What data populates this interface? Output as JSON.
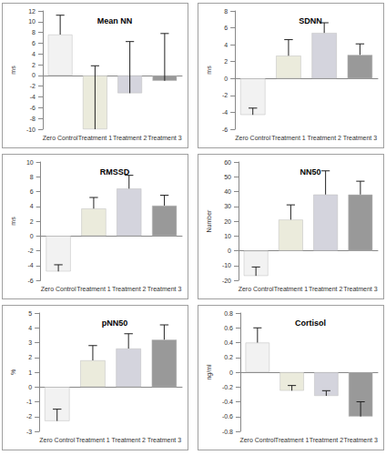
{
  "chart_data": [
    {
      "type": "bar",
      "title": "Mean NN",
      "y_label": "ms",
      "categories": [
        "Zero Control",
        "Treatment 1",
        "Treatment 2",
        "Treatment 3"
      ],
      "values": [
        7.6,
        -10,
        -3.3,
        -1
      ],
      "error": [
        3.6,
        11.8,
        9.6,
        8.8
      ],
      "colors": [
        "#f2f2f2",
        "#ebebdc",
        "#d4d4dd",
        "#999999"
      ],
      "ylim": [
        -10,
        12
      ],
      "yticks": [
        -10,
        -8,
        -6,
        -4,
        -2,
        0,
        2,
        4,
        6,
        8,
        10,
        12
      ],
      "grid": false
    },
    {
      "type": "bar",
      "title": "SDNN",
      "y_label": "ms",
      "categories": [
        "Zero Control",
        "Treatment 1",
        "Treatment 2",
        "Treatment 3"
      ],
      "values": [
        -4.3,
        2.7,
        5.4,
        2.8
      ],
      "error": [
        0.8,
        1.9,
        1.2,
        1.3
      ],
      "colors": [
        "#f2f2f2",
        "#ebebdc",
        "#d4d4dd",
        "#999999"
      ],
      "ylim": [
        -6,
        8
      ],
      "yticks": [
        -6,
        -4,
        -2,
        0,
        2,
        4,
        6,
        8
      ],
      "grid": false
    },
    {
      "type": "bar",
      "title": "RMSSD",
      "y_label": "ms",
      "categories": [
        "Zero Control",
        "Treatment 1",
        "Treatment 2",
        "Treatment 3"
      ],
      "values": [
        -4.8,
        3.7,
        6.4,
        4.1
      ],
      "error": [
        0.9,
        1.5,
        1.8,
        1.4
      ],
      "colors": [
        "#f2f2f2",
        "#ebebdc",
        "#d4d4dd",
        "#999999"
      ],
      "ylim": [
        -6,
        10
      ],
      "yticks": [
        -6,
        -4,
        -2,
        0,
        2,
        4,
        6,
        8,
        10
      ],
      "grid": false
    },
    {
      "type": "bar",
      "title": "NN50",
      "y_label": "Number",
      "categories": [
        "Zero Control",
        "Treatment 1",
        "Treatment 2",
        "Treatment 3"
      ],
      "values": [
        -17,
        21,
        38,
        38
      ],
      "error": [
        6,
        10,
        16,
        9
      ],
      "colors": [
        "#f2f2f2",
        "#ebebdc",
        "#d4d4dd",
        "#999999"
      ],
      "ylim": [
        -20,
        60
      ],
      "yticks": [
        -20,
        -10,
        0,
        10,
        20,
        30,
        40,
        50,
        60
      ],
      "grid": false
    },
    {
      "type": "bar",
      "title": "pNN50",
      "y_label": "%",
      "categories": [
        "Zero Control",
        "Treatment 1",
        "Treatment 2",
        "Treatment 3"
      ],
      "values": [
        -2.3,
        1.8,
        2.6,
        3.2
      ],
      "error": [
        0.8,
        1.0,
        1.0,
        1.0
      ],
      "colors": [
        "#f2f2f2",
        "#ebebdc",
        "#d4d4dd",
        "#999999"
      ],
      "ylim": [
        -3,
        5
      ],
      "yticks": [
        -3,
        -2,
        -1,
        0,
        1,
        2,
        3,
        4,
        5
      ],
      "grid": false
    },
    {
      "type": "bar",
      "title": "Cortisol",
      "y_label": "ng/ml",
      "categories": [
        "Zero Control",
        "Treatment 1",
        "Treatment 2",
        "Treatment 3"
      ],
      "values": [
        0.4,
        -0.25,
        -0.32,
        -0.6
      ],
      "error": [
        0.2,
        0.07,
        0.07,
        0.2
      ],
      "colors": [
        "#f2f2f2",
        "#ebebdc",
        "#d4d4dd",
        "#999999"
      ],
      "ylim": [
        -0.8,
        0.8
      ],
      "yticks": [
        -0.8,
        -0.6,
        -0.4,
        -0.2,
        0,
        0.2,
        0.4,
        0.6,
        0.8
      ],
      "grid": false
    }
  ]
}
